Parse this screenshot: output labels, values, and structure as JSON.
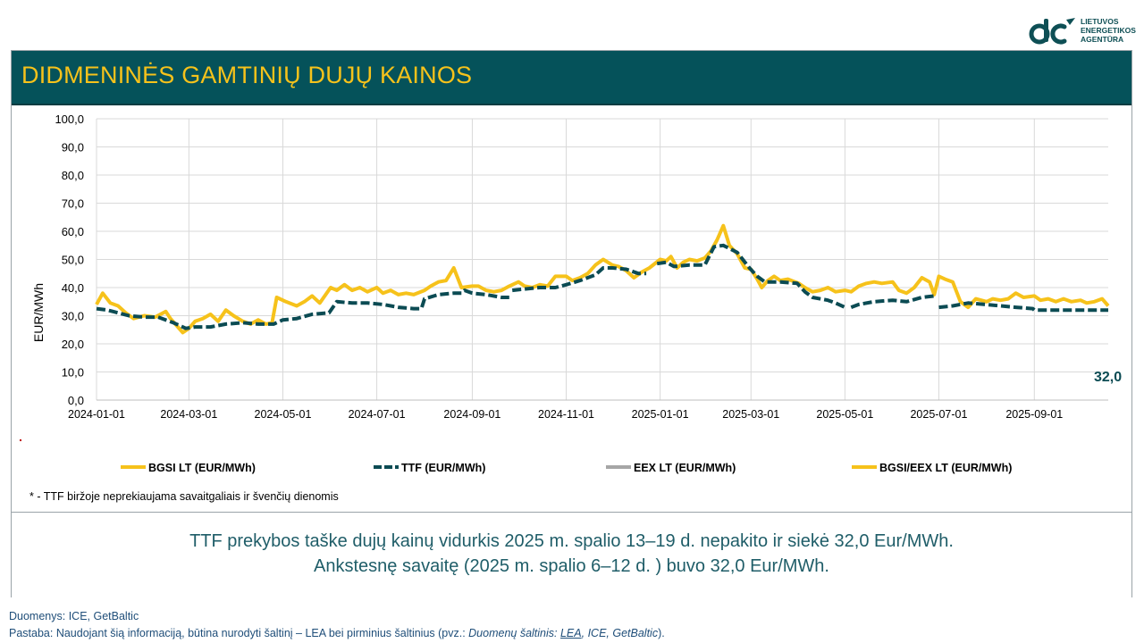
{
  "header": {
    "title": "DIDMENINĖS GAMTINIŲ DUJŲ KAINOS",
    "logo_lines": [
      "LIETUVOS",
      "ENERGETIKOS",
      "AGENTŪRA"
    ]
  },
  "chart_data": {
    "type": "line",
    "ylabel": "EUR/MWh",
    "ylim": [
      0,
      100
    ],
    "yticks": [
      "0,0",
      "10,0",
      "20,0",
      "30,0",
      "40,0",
      "50,0",
      "60,0",
      "70,0",
      "80,0",
      "90,0",
      "100,0"
    ],
    "xlim": [
      "2024-01-01",
      "2025-10-19"
    ],
    "xticks": [
      "2024-01-01",
      "2024-03-01",
      "2024-05-01",
      "2024-07-01",
      "2024-09-01",
      "2024-11-01",
      "2025-01-01",
      "2025-03-01",
      "2025-05-01",
      "2025-07-01",
      "2025-09-01"
    ],
    "grid": true,
    "legend_position": "bottom",
    "end_label": "32,0",
    "series": [
      {
        "name": "BGSI LT (EUR/MWh)",
        "color": "#f6c21b",
        "style": "solid",
        "points": [
          [
            "2024-01-01",
            34.0
          ],
          [
            "2024-01-05",
            38.0
          ],
          [
            "2024-01-10",
            34.5
          ],
          [
            "2024-01-15",
            33.5
          ],
          [
            "2024-01-20",
            31.0
          ],
          [
            "2024-01-25",
            29.0
          ],
          [
            "2024-02-01",
            30.0
          ],
          [
            "2024-02-08",
            29.5
          ],
          [
            "2024-02-15",
            31.5
          ],
          [
            "2024-02-18",
            29.0
          ],
          [
            "2024-02-22",
            26.5
          ],
          [
            "2024-02-26",
            24.0
          ],
          [
            "2024-03-01",
            25.5
          ],
          [
            "2024-03-05",
            28.0
          ],
          [
            "2024-03-10",
            29.0
          ],
          [
            "2024-03-15",
            30.5
          ],
          [
            "2024-03-20",
            28.0
          ],
          [
            "2024-03-25",
            32.0
          ],
          [
            "2024-03-30",
            30.0
          ],
          [
            "2024-04-05",
            28.0
          ],
          [
            "2024-04-10",
            27.0
          ],
          [
            "2024-04-15",
            28.5
          ],
          [
            "2024-04-20",
            27.0
          ],
          [
            "2024-04-24",
            27.5
          ],
          [
            "2024-04-27",
            36.5
          ],
          [
            "2024-05-03",
            35.0
          ],
          [
            "2024-05-10",
            33.5
          ],
          [
            "2024-05-15",
            35.0
          ],
          [
            "2024-05-20",
            37.0
          ],
          [
            "2024-05-25",
            34.5
          ],
          [
            "2024-06-01",
            40.0
          ],
          [
            "2024-06-05",
            39.0
          ],
          [
            "2024-06-10",
            41.0
          ],
          [
            "2024-06-15",
            39.0
          ],
          [
            "2024-06-20",
            40.0
          ],
          [
            "2024-06-25",
            38.5
          ],
          [
            "2024-07-01",
            40.0
          ],
          [
            "2024-07-05",
            38.0
          ],
          [
            "2024-07-10",
            39.0
          ],
          [
            "2024-07-15",
            37.5
          ],
          [
            "2024-07-20",
            38.0
          ],
          [
            "2024-07-25",
            37.5
          ],
          [
            "2024-08-01",
            39.0
          ],
          [
            "2024-08-05",
            40.5
          ],
          [
            "2024-08-10",
            42.0
          ],
          [
            "2024-08-15",
            42.5
          ],
          [
            "2024-08-20",
            47.0
          ],
          [
            "2024-08-25",
            40.0
          ],
          [
            "2024-09-01",
            40.5
          ],
          [
            "2024-09-05",
            40.5
          ],
          [
            "2024-09-10",
            39.0
          ],
          [
            "2024-09-15",
            38.5
          ],
          [
            "2024-09-20",
            39.0
          ],
          [
            "2024-09-25",
            40.5
          ],
          [
            "2024-10-01",
            42.0
          ],
          [
            "2024-10-05",
            40.5
          ],
          [
            "2024-10-10",
            40.0
          ],
          [
            "2024-10-15",
            41.0
          ],
          [
            "2024-10-20",
            40.5
          ],
          [
            "2024-10-25",
            44.0
          ],
          [
            "2024-11-01",
            44.0
          ],
          [
            "2024-11-05",
            42.5
          ],
          [
            "2024-11-10",
            43.5
          ],
          [
            "2024-11-15",
            45.0
          ],
          [
            "2024-11-20",
            48.0
          ],
          [
            "2024-11-25",
            50.0
          ],
          [
            "2024-12-01",
            48.0
          ],
          [
            "2024-12-05",
            47.5
          ],
          [
            "2024-12-10",
            46.0
          ],
          [
            "2024-12-15",
            43.5
          ],
          [
            "2024-12-20",
            45.5
          ],
          [
            "2024-12-25",
            47.0
          ],
          [
            "2025-01-01",
            50.0
          ],
          [
            "2025-01-05",
            49.5
          ],
          [
            "2025-01-08",
            51.0
          ],
          [
            "2025-01-12",
            47.0
          ],
          [
            "2025-01-16",
            49.0
          ],
          [
            "2025-01-20",
            50.0
          ],
          [
            "2025-01-25",
            49.5
          ],
          [
            "2025-01-30",
            50.5
          ],
          [
            "2025-02-03",
            53.0
          ],
          [
            "2025-02-07",
            57.0
          ],
          [
            "2025-02-11",
            62.0
          ],
          [
            "2025-02-15",
            55.0
          ],
          [
            "2025-02-20",
            52.0
          ],
          [
            "2025-02-25",
            47.0
          ],
          [
            "2025-03-01",
            46.5
          ],
          [
            "2025-03-05",
            43.0
          ],
          [
            "2025-03-08",
            40.0
          ],
          [
            "2025-03-12",
            42.5
          ],
          [
            "2025-03-16",
            44.0
          ],
          [
            "2025-03-20",
            42.5
          ],
          [
            "2025-03-25",
            43.0
          ],
          [
            "2025-04-01",
            41.5
          ],
          [
            "2025-04-05",
            40.0
          ],
          [
            "2025-04-10",
            38.5
          ],
          [
            "2025-04-15",
            39.0
          ],
          [
            "2025-04-20",
            40.0
          ],
          [
            "2025-04-25",
            38.5
          ],
          [
            "2025-05-01",
            39.0
          ],
          [
            "2025-05-05",
            38.5
          ],
          [
            "2025-05-10",
            40.5
          ],
          [
            "2025-05-15",
            41.5
          ],
          [
            "2025-05-20",
            42.0
          ],
          [
            "2025-05-25",
            41.5
          ],
          [
            "2025-06-01",
            42.0
          ],
          [
            "2025-06-05",
            39.0
          ],
          [
            "2025-06-10",
            38.0
          ],
          [
            "2025-06-15",
            40.0
          ],
          [
            "2025-06-20",
            43.5
          ],
          [
            "2025-06-25",
            42.0
          ],
          [
            "2025-06-28",
            37.5
          ],
          [
            "2025-07-01",
            44.0
          ],
          [
            "2025-07-05",
            43.0
          ],
          [
            "2025-07-10",
            42.0
          ],
          [
            "2025-07-15",
            35.0
          ],
          [
            "2025-07-20",
            33.0
          ],
          [
            "2025-07-25",
            36.0
          ],
          [
            "2025-08-01",
            35.0
          ],
          [
            "2025-08-05",
            36.0
          ],
          [
            "2025-08-10",
            35.5
          ],
          [
            "2025-08-15",
            36.0
          ],
          [
            "2025-08-20",
            38.0
          ],
          [
            "2025-08-25",
            36.5
          ],
          [
            "2025-09-01",
            37.0
          ],
          [
            "2025-09-05",
            35.5
          ],
          [
            "2025-09-10",
            36.0
          ],
          [
            "2025-09-15",
            35.0
          ],
          [
            "2025-09-20",
            36.0
          ],
          [
            "2025-09-25",
            35.0
          ],
          [
            "2025-10-01",
            35.5
          ],
          [
            "2025-10-05",
            34.5
          ],
          [
            "2025-10-10",
            35.0
          ],
          [
            "2025-10-15",
            36.0
          ],
          [
            "2025-10-19",
            33.5
          ]
        ]
      },
      {
        "name": "TTF (EUR/MWh)",
        "color": "#0b4b53",
        "style": "dashed",
        "segments": [
          [
            [
              "2024-01-01",
              32.5
            ],
            [
              "2024-01-08",
              32.0
            ],
            [
              "2024-01-15",
              31.0
            ],
            [
              "2024-01-22",
              30.0
            ],
            [
              "2024-02-01",
              29.5
            ],
            [
              "2024-02-10",
              29.5
            ],
            [
              "2024-02-20",
              27.5
            ],
            [
              "2024-02-28",
              25.5
            ],
            [
              "2024-03-05",
              26.0
            ],
            [
              "2024-03-15",
              26.0
            ],
            [
              "2024-03-25",
              27.0
            ],
            [
              "2024-04-05",
              27.5
            ],
            [
              "2024-04-15",
              27.0
            ],
            [
              "2024-04-25",
              27.0
            ],
            [
              "2024-05-01",
              28.5
            ],
            [
              "2024-05-10",
              29.0
            ],
            [
              "2024-05-20",
              30.5
            ],
            [
              "2024-05-31",
              31.0
            ],
            [
              "2024-06-05",
              35.0
            ],
            [
              "2024-06-15",
              34.5
            ],
            [
              "2024-06-25",
              34.5
            ],
            [
              "2024-07-05",
              34.0
            ],
            [
              "2024-07-15",
              33.0
            ],
            [
              "2024-07-25",
              32.5
            ],
            [
              "2024-07-30",
              32.5
            ],
            [
              "2024-08-01",
              36.0
            ],
            [
              "2024-08-10",
              37.5
            ],
            [
              "2024-08-20",
              38.0
            ],
            [
              "2024-08-25",
              38.0
            ],
            [
              "2024-08-27",
              39.0
            ],
            [
              "2024-09-01",
              38.0
            ],
            [
              "2024-09-10",
              37.5
            ],
            [
              "2024-09-20",
              36.5
            ],
            [
              "2024-09-25",
              36.5
            ]
          ],
          [
            [
              "2024-09-27",
              39.0
            ],
            [
              "2024-10-05",
              39.5
            ],
            [
              "2024-10-15",
              40.0
            ],
            [
              "2024-10-25",
              40.0
            ],
            [
              "2024-11-01",
              41.0
            ],
            [
              "2024-11-10",
              42.5
            ],
            [
              "2024-11-20",
              44.5
            ],
            [
              "2024-11-25",
              47.0
            ],
            [
              "2024-12-01",
              47.0
            ],
            [
              "2024-12-10",
              46.5
            ],
            [
              "2024-12-18",
              45.0
            ],
            [
              "2024-12-23",
              45.0
            ]
          ],
          [
            [
              "2024-12-30",
              48.5
            ],
            [
              "2025-01-05",
              49.0
            ],
            [
              "2025-01-10",
              47.5
            ],
            [
              "2025-01-20",
              48.0
            ],
            [
              "2025-01-30",
              48.0
            ],
            [
              "2025-02-05",
              54.5
            ],
            [
              "2025-02-11",
              55.0
            ],
            [
              "2025-02-20",
              52.5
            ],
            [
              "2025-02-28",
              47.0
            ],
            [
              "2025-03-05",
              44.0
            ],
            [
              "2025-03-10",
              42.0
            ],
            [
              "2025-03-20",
              42.0
            ],
            [
              "2025-03-31",
              41.5
            ],
            [
              "2025-04-05",
              38.5
            ],
            [
              "2025-04-10",
              36.5
            ],
            [
              "2025-04-20",
              35.5
            ],
            [
              "2025-04-25",
              34.5
            ],
            [
              "2025-05-01",
              33.0
            ]
          ],
          [
            [
              "2025-05-05",
              33.0
            ],
            [
              "2025-05-10",
              34.0
            ],
            [
              "2025-05-20",
              35.0
            ],
            [
              "2025-06-01",
              35.5
            ],
            [
              "2025-06-10",
              35.0
            ],
            [
              "2025-06-20",
              36.5
            ],
            [
              "2025-06-28",
              37.0
            ]
          ],
          [
            [
              "2025-07-01",
              33.0
            ],
            [
              "2025-07-10",
              33.5
            ],
            [
              "2025-07-20",
              34.5
            ],
            [
              "2025-07-31",
              34.0
            ],
            [
              "2025-08-10",
              33.5
            ],
            [
              "2025-08-20",
              33.0
            ],
            [
              "2025-08-31",
              32.5
            ],
            [
              "2025-09-01",
              32.0
            ],
            [
              "2025-09-15",
              32.0
            ],
            [
              "2025-09-30",
              32.0
            ],
            [
              "2025-10-10",
              32.0
            ],
            [
              "2025-10-19",
              32.0
            ]
          ]
        ]
      },
      {
        "name": "EEX LT (EUR/MWh)",
        "color": "#a6a6a6",
        "style": "solid",
        "points": []
      },
      {
        "name": "BGSI/EEX LT (EUR/MWh)",
        "color": "#f6c21b",
        "style": "solid",
        "points": []
      }
    ]
  },
  "footnote": "* - TTF biržoje neprekiaujama savaitgaliais ir švenčių dienomis",
  "summary": {
    "line1": "TTF prekybos taške dujų kainų vidurkis 2025 m. spalio 13–19 d. nepakito ir siekė 32,0 Eur/MWh.",
    "line2": "Ankstesnę savaitę (2025 m. spalio 6–12 d. ) buvo 32,0 Eur/MWh."
  },
  "footer": {
    "sources": "Duomenys: ICE, GetBaltic",
    "note_prefix": "Pastaba: Naudojant šią informaciją, būtina nurodyti šaltinį – LEA bei pirminius šaltinius (pvz.: ",
    "note_source_label": "Duomenų šaltinis: ",
    "note_link": "LEA",
    "note_rest": ", ICE, GetBaltic",
    "note_suffix": ")."
  }
}
